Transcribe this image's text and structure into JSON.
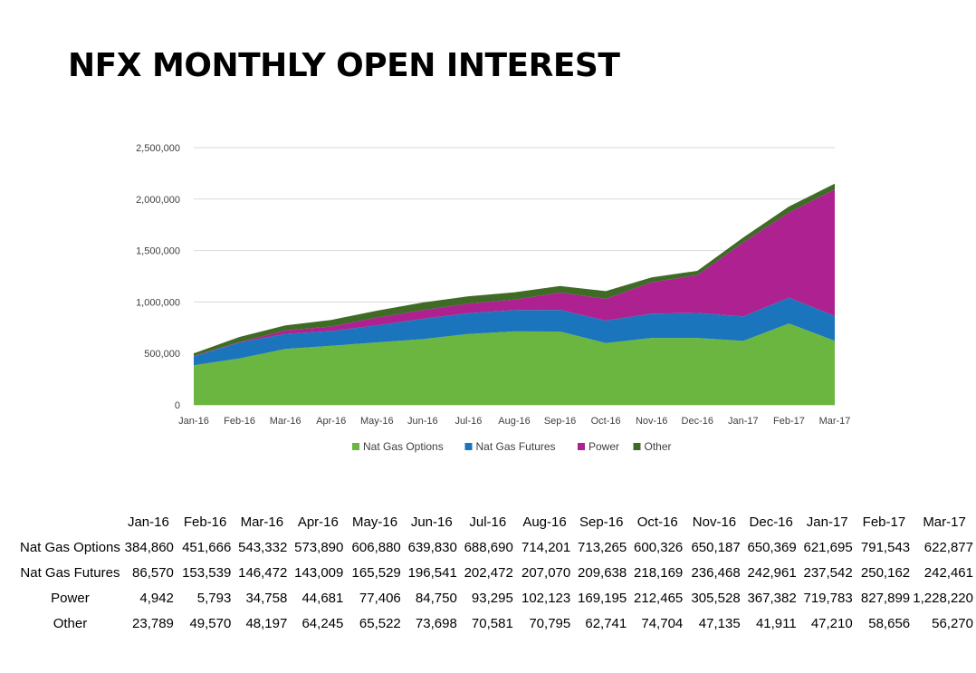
{
  "title": "NFX MONTHLY OPEN INTEREST",
  "chart_data": {
    "type": "area",
    "stacked": true,
    "categories": [
      "Jan-16",
      "Feb-16",
      "Mar-16",
      "Apr-16",
      "May-16",
      "Jun-16",
      "Jul-16",
      "Aug-16",
      "Sep-16",
      "Oct-16",
      "Nov-16",
      "Dec-16",
      "Jan-17",
      "Feb-17",
      "Mar-17"
    ],
    "series": [
      {
        "name": "Nat Gas Options",
        "color": "#6bb641",
        "values": [
          384860,
          451666,
          543332,
          573890,
          606880,
          639830,
          688690,
          714201,
          713265,
          600326,
          650187,
          650369,
          621695,
          791543,
          622877
        ]
      },
      {
        "name": "Nat Gas Futures",
        "color": "#1a75bc",
        "values": [
          86570,
          153539,
          146472,
          143009,
          165529,
          196541,
          202472,
          207070,
          209638,
          218169,
          236468,
          242961,
          237542,
          250162,
          242461
        ]
      },
      {
        "name": "Power",
        "color": "#ad2290",
        "values": [
          4942,
          5793,
          34758,
          44681,
          77406,
          84750,
          93295,
          102123,
          169195,
          212465,
          305528,
          367382,
          719783,
          827899,
          1228220
        ]
      },
      {
        "name": "Other",
        "color": "#3e6b25",
        "values": [
          23789,
          49570,
          48197,
          64245,
          65522,
          73698,
          70581,
          70795,
          62741,
          74704,
          47135,
          41911,
          47210,
          58656,
          56270
        ]
      }
    ],
    "y_ticks": [
      "0",
      "500,000",
      "1,000,000",
      "1,500,000",
      "2,000,000",
      "2,500,000"
    ],
    "ylim": [
      0,
      2500000
    ],
    "grid": true,
    "legend_position": "bottom"
  },
  "table": {
    "row_labels": [
      "Nat Gas Options",
      "Nat Gas Futures",
      "Power",
      "Other"
    ],
    "column_headers": [
      "Jan-16",
      "Feb-16",
      "Mar-16",
      "Apr-16",
      "May-16",
      "Jun-16",
      "Jul-16",
      "Aug-16",
      "Sep-16",
      "Oct-16",
      "Nov-16",
      "Dec-16",
      "Jan-17",
      "Feb-17",
      "Mar-17"
    ],
    "rows": [
      [
        "384,860",
        "451,666",
        "543,332",
        "573,890",
        "606,880",
        "639,830",
        "688,690",
        "714,201",
        "713,265",
        "600,326",
        "650,187",
        "650,369",
        "621,695",
        "791,543",
        "622,877"
      ],
      [
        "86,570",
        "153,539",
        "146,472",
        "143,009",
        "165,529",
        "196,541",
        "202,472",
        "207,070",
        "209,638",
        "218,169",
        "236,468",
        "242,961",
        "237,542",
        "250,162",
        "242,461"
      ],
      [
        "4,942",
        "5,793",
        "34,758",
        "44,681",
        "77,406",
        "84,750",
        "93,295",
        "102,123",
        "169,195",
        "212,465",
        "305,528",
        "367,382",
        "719,783",
        "827,899",
        "1,228,220"
      ],
      [
        "23,789",
        "49,570",
        "48,197",
        "64,245",
        "65,522",
        "73,698",
        "70,581",
        "70,795",
        "62,741",
        "74,704",
        "47,135",
        "41,911",
        "47,210",
        "58,656",
        "56,270"
      ]
    ]
  }
}
